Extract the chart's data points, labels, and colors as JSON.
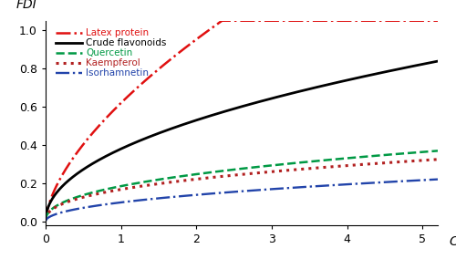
{
  "title": "",
  "xlabel": "C",
  "ylabel": "FDI",
  "xlim": [
    0,
    5.2
  ],
  "ylim": [
    -0.02,
    1.05
  ],
  "xticks": [
    0,
    1,
    2,
    3,
    4,
    5
  ],
  "yticks": [
    0,
    0.2,
    0.4,
    0.6,
    0.8,
    1
  ],
  "series": [
    {
      "name": "Latex protein",
      "color": "#e01010",
      "linestyle": "-.",
      "linewidth": 1.8,
      "a": 0.62,
      "b": 0.62
    },
    {
      "name": "Crude flavonoids",
      "color": "#000000",
      "linestyle": "-",
      "linewidth": 2.0,
      "a": 0.38,
      "b": 0.48
    },
    {
      "name": "Quercetin",
      "color": "#009944",
      "linestyle": "--",
      "linewidth": 1.8,
      "a": 0.185,
      "b": 0.42
    },
    {
      "name": "Kaempferol",
      "color": "#b22020",
      "linestyle": ":",
      "linewidth": 2.2,
      "a": 0.168,
      "b": 0.4
    },
    {
      "name": "Isorhamnetin",
      "color": "#2244aa",
      "linestyle": "-.",
      "linewidth": 1.7,
      "a": 0.1,
      "b": 0.48
    }
  ],
  "legend_loc": "upper left",
  "background_color": "#ffffff"
}
